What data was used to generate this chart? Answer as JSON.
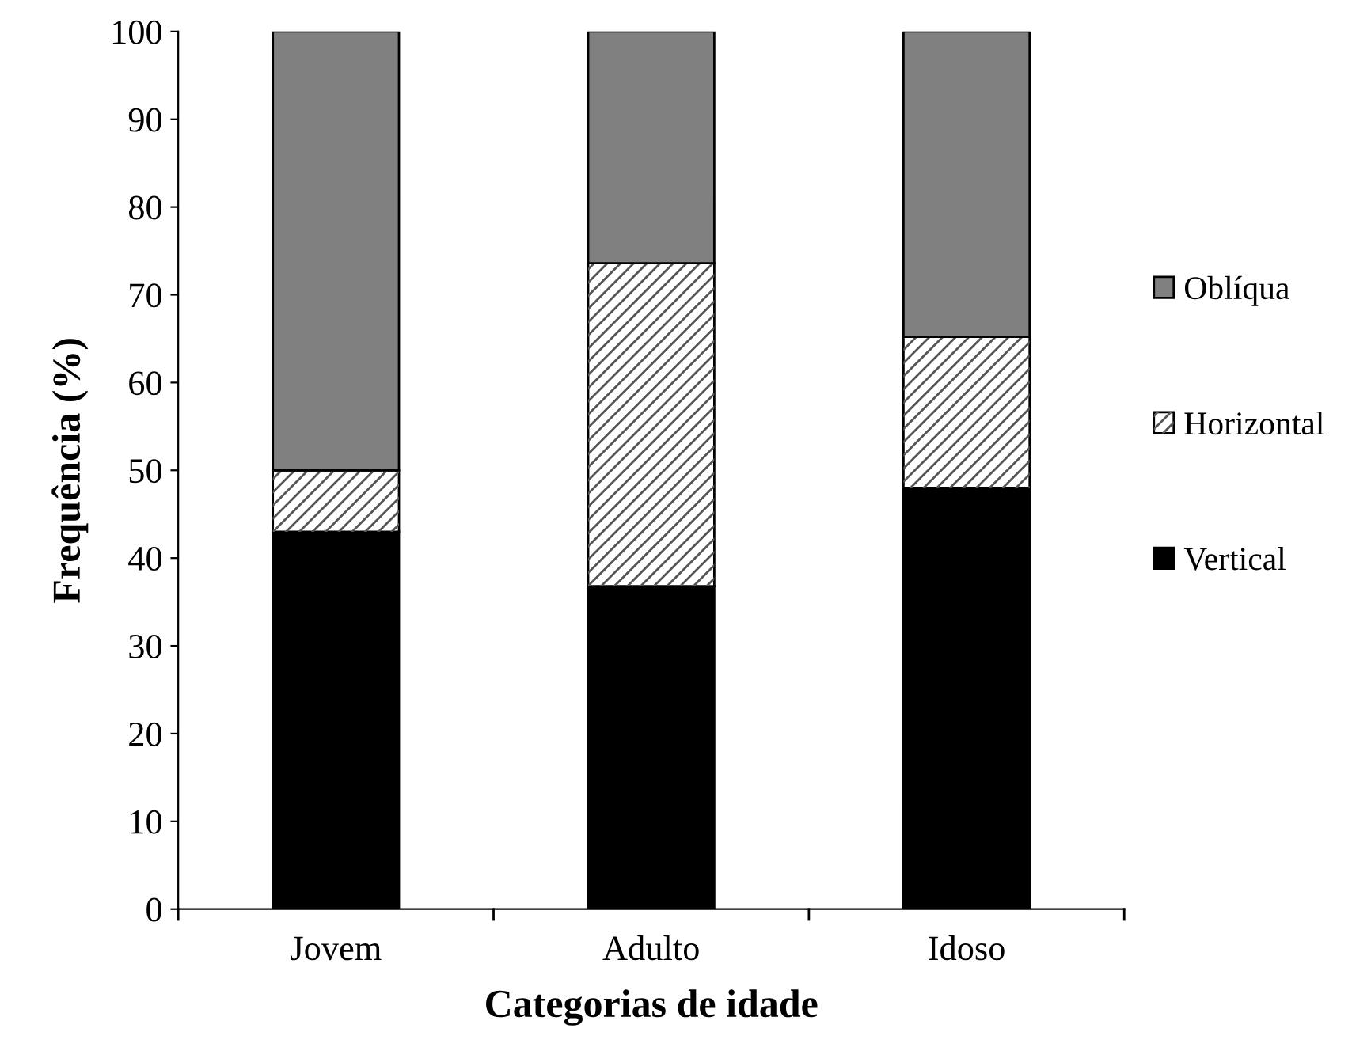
{
  "chart_data": {
    "type": "bar",
    "stacked": true,
    "xlabel": "Categorias de idade",
    "ylabel": "Frequência (%)",
    "categories": [
      "Jovem",
      "Adulto",
      "Idoso"
    ],
    "series": [
      {
        "name": "Vertical",
        "color": "#000000",
        "values": [
          43.0,
          36.8,
          48.0
        ]
      },
      {
        "name": "Horizontal",
        "color": "#ffffff",
        "values": [
          7.0,
          36.8,
          17.2
        ]
      },
      {
        "name": "Oblíqua",
        "color": "#808080",
        "values": [
          50.0,
          26.4,
          34.8
        ]
      }
    ],
    "ylim": [
      0,
      100
    ],
    "yticks": [
      0,
      10,
      20,
      30,
      40,
      50,
      60,
      70,
      80,
      90,
      100
    ],
    "grid": false,
    "legend": "right"
  }
}
